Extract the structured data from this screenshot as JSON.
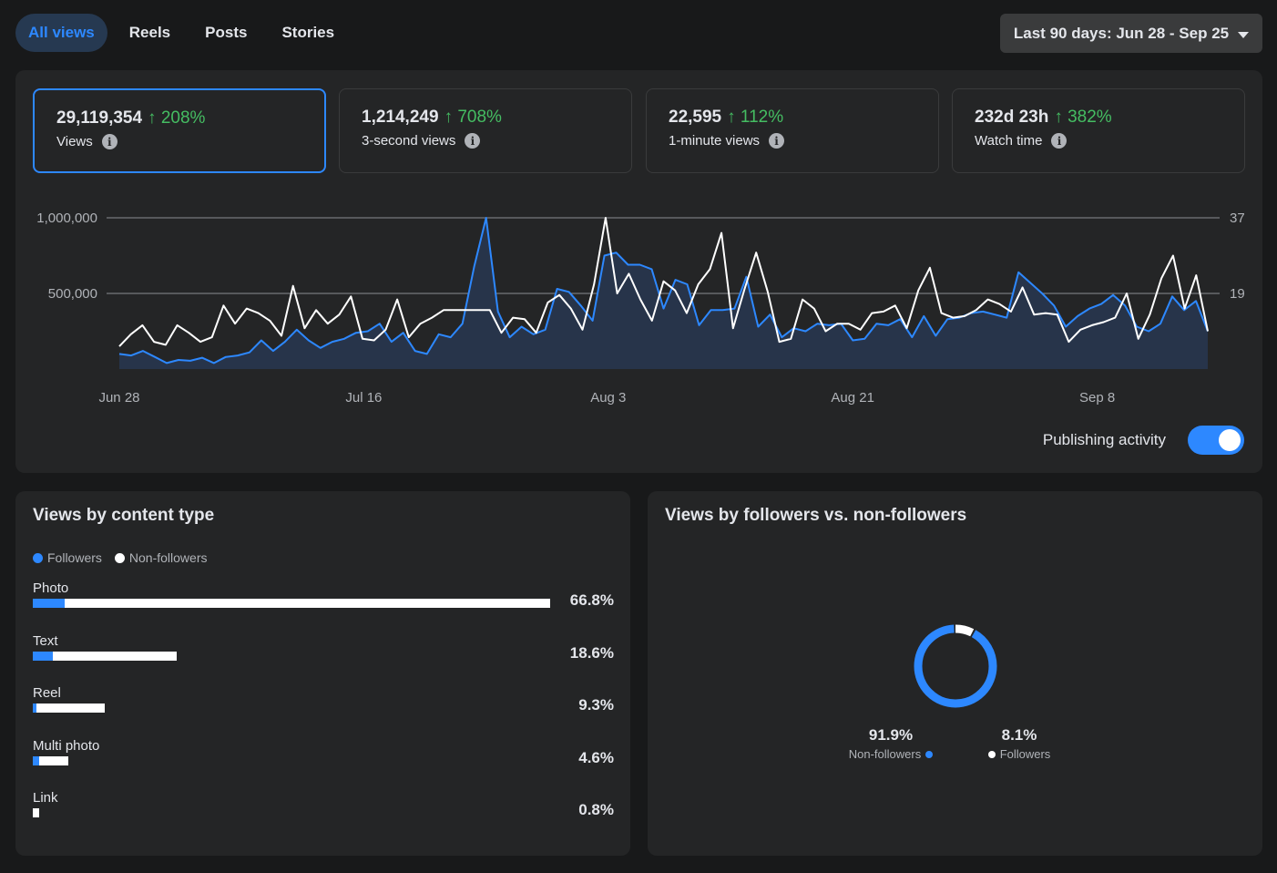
{
  "tabs": [
    {
      "label": "All views",
      "active": true
    },
    {
      "label": "Reels",
      "active": false
    },
    {
      "label": "Posts",
      "active": false
    },
    {
      "label": "Stories",
      "active": false
    }
  ],
  "date_range": "Last 90 days: Jun 28 - Sep 25",
  "kpis": [
    {
      "value": "29,119,354",
      "delta": "208%",
      "label": "Views",
      "selected": true
    },
    {
      "value": "1,214,249",
      "delta": "708%",
      "label": "3-second views",
      "selected": false
    },
    {
      "value": "22,595",
      "delta": "112%",
      "label": "1-minute views",
      "selected": false
    },
    {
      "value": "232d 23h",
      "delta": "382%",
      "label": "Watch time",
      "selected": false
    }
  ],
  "publishing_activity": {
    "label": "Publishing activity",
    "on": true
  },
  "colors": {
    "accent": "#2d88ff",
    "positive": "#45bd62",
    "white_series": "#ffffff"
  },
  "chart_data": {
    "type": "line",
    "x_ticks": [
      "Jun 28",
      "Jul 16",
      "Aug 3",
      "Aug 21",
      "Sep 8"
    ],
    "y_left_ticks": [
      "1,000,000",
      "500,000"
    ],
    "y_right_ticks": [
      "37",
      "19"
    ],
    "ylim": [
      0,
      1000000
    ],
    "series": [
      {
        "color": "#2d88ff",
        "area": true,
        "values": [
          100000,
          90000,
          120000,
          80000,
          40000,
          60000,
          55000,
          75000,
          40000,
          80000,
          90000,
          110000,
          190000,
          120000,
          180000,
          260000,
          190000,
          140000,
          180000,
          200000,
          240000,
          250000,
          300000,
          180000,
          240000,
          120000,
          100000,
          230000,
          210000,
          300000,
          680000,
          1000000,
          380000,
          210000,
          280000,
          230000,
          260000,
          530000,
          510000,
          420000,
          320000,
          750000,
          770000,
          690000,
          690000,
          660000,
          400000,
          590000,
          560000,
          290000,
          390000,
          390000,
          400000,
          610000,
          280000,
          360000,
          210000,
          270000,
          250000,
          300000,
          290000,
          300000,
          190000,
          200000,
          300000,
          290000,
          330000,
          210000,
          350000,
          220000,
          330000,
          340000,
          370000,
          380000,
          360000,
          340000,
          640000,
          570000,
          500000,
          420000,
          280000,
          350000,
          400000,
          430000,
          490000,
          420000,
          280000,
          250000,
          300000,
          480000,
          390000,
          450000,
          250000
        ]
      },
      {
        "color": "#ffffff",
        "area": false,
        "values": [
          150000,
          230000,
          290000,
          180000,
          160000,
          290000,
          240000,
          180000,
          210000,
          420000,
          300000,
          400000,
          370000,
          320000,
          220000,
          550000,
          270000,
          390000,
          300000,
          360000,
          480000,
          200000,
          190000,
          260000,
          460000,
          210000,
          300000,
          340000,
          390000,
          390000,
          390000,
          390000,
          390000,
          240000,
          340000,
          330000,
          240000,
          440000,
          490000,
          400000,
          260000,
          560000,
          1000000,
          500000,
          630000,
          460000,
          320000,
          580000,
          520000,
          370000,
          560000,
          660000,
          900000,
          270000,
          530000,
          770000,
          510000,
          180000,
          200000,
          460000,
          400000,
          250000,
          300000,
          300000,
          260000,
          370000,
          380000,
          420000,
          270000,
          520000,
          670000,
          370000,
          340000,
          350000,
          390000,
          460000,
          430000,
          380000,
          540000,
          360000,
          370000,
          360000,
          180000,
          260000,
          290000,
          310000,
          340000,
          500000,
          200000,
          360000,
          600000,
          750000,
          400000,
          620000,
          250000
        ]
      }
    ]
  },
  "content_type": {
    "title": "Views by content type",
    "legend": [
      {
        "label": "Followers",
        "color": "#2d88ff"
      },
      {
        "label": "Non-followers",
        "color": "#ffffff"
      }
    ],
    "rows": [
      {
        "label": "Photo",
        "pct": "66.8%",
        "total": 66.8,
        "followers_share": 0.062
      },
      {
        "label": "Text",
        "pct": "18.6%",
        "total": 18.6,
        "followers_share": 0.14
      },
      {
        "label": "Reel",
        "pct": "9.3%",
        "total": 9.3,
        "followers_share": 0.05
      },
      {
        "label": "Multi photo",
        "pct": "4.6%",
        "total": 4.6,
        "followers_share": 0.18
      },
      {
        "label": "Link",
        "pct": "0.8%",
        "total": 0.8,
        "followers_share": 0.0
      }
    ]
  },
  "followers_split": {
    "title": "Views by followers vs. non-followers",
    "non_followers": {
      "pct": "91.9%",
      "label": "Non-followers",
      "value": 91.9,
      "color": "#2d88ff"
    },
    "followers": {
      "pct": "8.1%",
      "label": "Followers",
      "value": 8.1,
      "color": "#ffffff"
    }
  }
}
